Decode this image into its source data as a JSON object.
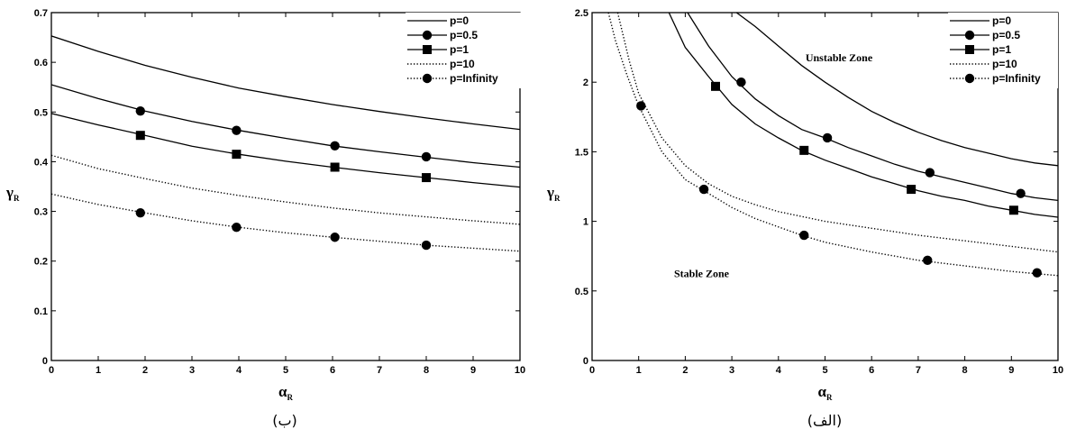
{
  "chart_data": [
    {
      "type": "line",
      "caption": "(ب)",
      "xlabel_main": "α",
      "xlabel_sub": "R",
      "ylabel_main": "γ",
      "ylabel_sub": "R",
      "xlim": [
        0,
        10
      ],
      "ylim": [
        0,
        0.7
      ],
      "xticks": [
        0,
        1,
        2,
        3,
        4,
        5,
        6,
        7,
        8,
        9,
        10
      ],
      "yticks": [
        0,
        0.1,
        0.2,
        0.3,
        0.4,
        0.5,
        0.6,
        0.7
      ],
      "grid": false,
      "legend_position": "top-right",
      "annotations": [],
      "series": [
        {
          "name": "p=0",
          "line": "solid",
          "marker": "none",
          "x": [
            0,
            1,
            2,
            3,
            4,
            5,
            6,
            7,
            8,
            9,
            10
          ],
          "y": [
            0.653,
            0.622,
            0.594,
            0.57,
            0.548,
            0.531,
            0.515,
            0.501,
            0.488,
            0.476,
            0.465
          ]
        },
        {
          "name": "p=0.5",
          "line": "solid",
          "marker": "circle",
          "x": [
            0,
            1,
            2,
            3,
            4,
            5,
            6,
            7,
            8,
            9,
            10
          ],
          "y": [
            0.555,
            0.527,
            0.502,
            0.481,
            0.463,
            0.447,
            0.432,
            0.42,
            0.409,
            0.398,
            0.389
          ],
          "markers_x": [
            1.9,
            3.95,
            6.05,
            8.0
          ],
          "markers_y": [
            0.502,
            0.463,
            0.432,
            0.41
          ]
        },
        {
          "name": "p=1",
          "line": "solid",
          "marker": "square",
          "x": [
            0,
            1,
            2,
            3,
            4,
            5,
            6,
            7,
            8,
            9,
            10
          ],
          "y": [
            0.497,
            0.474,
            0.453,
            0.431,
            0.415,
            0.401,
            0.389,
            0.378,
            0.368,
            0.358,
            0.349
          ],
          "markers_x": [
            1.9,
            3.95,
            6.05,
            8.0
          ],
          "markers_y": [
            0.453,
            0.415,
            0.389,
            0.368
          ]
        },
        {
          "name": "p=10",
          "line": "dotted",
          "marker": "none",
          "x": [
            0,
            1,
            2,
            3,
            4,
            5,
            6,
            7,
            8,
            9,
            10
          ],
          "y": [
            0.413,
            0.386,
            0.366,
            0.347,
            0.332,
            0.319,
            0.307,
            0.297,
            0.289,
            0.281,
            0.274
          ]
        },
        {
          "name": "p=Infinity",
          "line": "dotted",
          "marker": "circle",
          "x": [
            0,
            1,
            2,
            3,
            4,
            5,
            6,
            7,
            8,
            9,
            10
          ],
          "y": [
            0.335,
            0.314,
            0.297,
            0.281,
            0.268,
            0.257,
            0.248,
            0.24,
            0.232,
            0.226,
            0.22
          ],
          "markers_x": [
            1.9,
            3.95,
            6.05,
            8.0
          ],
          "markers_y": [
            0.297,
            0.268,
            0.248,
            0.232
          ]
        }
      ]
    },
    {
      "type": "line",
      "caption": "(الف)",
      "xlabel_main": "α",
      "xlabel_sub": "R",
      "ylabel_main": "γ",
      "ylabel_sub": "R",
      "xlim": [
        0,
        10
      ],
      "ylim": [
        0,
        2.5
      ],
      "xticks": [
        0,
        1,
        2,
        3,
        4,
        5,
        6,
        7,
        8,
        9,
        10
      ],
      "yticks": [
        0,
        0.5,
        1,
        1.5,
        2,
        2.5
      ],
      "grid": false,
      "legend_position": "top-right",
      "annotations": [
        {
          "text": "Unstable Zone",
          "x": 5.3,
          "y": 2.15
        },
        {
          "text": "Stable Zone",
          "x": 2.35,
          "y": 0.6
        }
      ],
      "series": [
        {
          "name": "p=0",
          "line": "solid",
          "marker": "none",
          "x": [
            3.1,
            3.5,
            4,
            4.5,
            5,
            5.5,
            6,
            6.5,
            7,
            7.5,
            8,
            8.5,
            9,
            9.5,
            10
          ],
          "y": [
            2.5,
            2.4,
            2.26,
            2.12,
            2.0,
            1.89,
            1.79,
            1.71,
            1.64,
            1.58,
            1.53,
            1.49,
            1.45,
            1.42,
            1.4
          ]
        },
        {
          "name": "p=0.5",
          "line": "solid",
          "marker": "circle",
          "x": [
            2.05,
            2.5,
            3,
            3.5,
            4,
            4.5,
            5,
            5.5,
            6,
            6.5,
            7,
            7.5,
            8,
            8.5,
            9,
            9.5,
            10
          ],
          "y": [
            2.5,
            2.26,
            2.04,
            1.88,
            1.76,
            1.66,
            1.6,
            1.53,
            1.47,
            1.41,
            1.36,
            1.32,
            1.28,
            1.24,
            1.2,
            1.17,
            1.15
          ],
          "markers_x": [
            3.2,
            5.05,
            7.25,
            9.2
          ],
          "markers_y": [
            2.0,
            1.6,
            1.35,
            1.2
          ]
        },
        {
          "name": "p=1",
          "line": "solid",
          "marker": "square",
          "x": [
            1.65,
            2,
            2.5,
            3,
            3.5,
            4,
            4.5,
            5,
            5.5,
            6,
            6.5,
            7,
            7.5,
            8,
            8.5,
            9,
            9.5,
            10
          ],
          "y": [
            2.5,
            2.25,
            2.04,
            1.84,
            1.7,
            1.6,
            1.51,
            1.44,
            1.38,
            1.32,
            1.27,
            1.22,
            1.18,
            1.15,
            1.11,
            1.08,
            1.05,
            1.03
          ],
          "markers_x": [
            2.65,
            4.55,
            6.85,
            9.05
          ],
          "markers_y": [
            1.97,
            1.51,
            1.23,
            1.08
          ]
        },
        {
          "name": "p=10",
          "line": "dotted",
          "marker": "none",
          "x": [
            0.55,
            0.8,
            1,
            1.5,
            2,
            2.5,
            3,
            3.5,
            4,
            5,
            6,
            7,
            8,
            9,
            10
          ],
          "y": [
            2.5,
            2.15,
            1.92,
            1.6,
            1.4,
            1.27,
            1.18,
            1.12,
            1.07,
            1.0,
            0.95,
            0.9,
            0.86,
            0.82,
            0.78
          ]
        },
        {
          "name": "p=Infinity",
          "line": "dotted",
          "marker": "circle",
          "x": [
            0.35,
            0.5,
            0.75,
            1,
            1.5,
            2,
            2.5,
            3,
            3.5,
            4,
            4.5,
            5,
            6,
            7,
            8,
            9,
            10
          ],
          "y": [
            2.5,
            2.3,
            2.05,
            1.83,
            1.5,
            1.3,
            1.2,
            1.1,
            1.02,
            0.96,
            0.9,
            0.85,
            0.78,
            0.72,
            0.68,
            0.64,
            0.61
          ],
          "markers_x": [
            1.05,
            2.4,
            4.55,
            7.2,
            9.55
          ],
          "markers_y": [
            1.83,
            1.23,
            0.9,
            0.72,
            0.63
          ]
        }
      ]
    }
  ]
}
